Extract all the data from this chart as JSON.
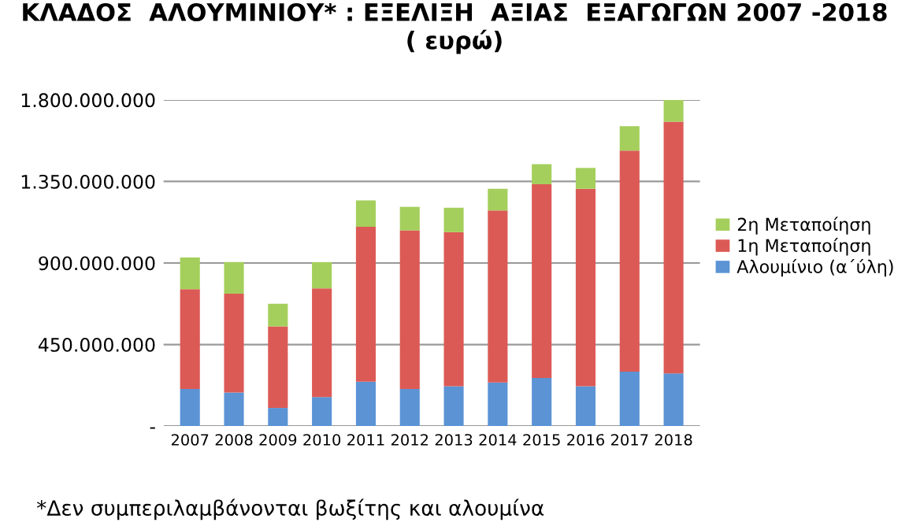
{
  "chart_data": {
    "type": "bar",
    "stacked": true,
    "title": "ΚΛΑΔΟΣ  ΑΛΟΥΜΙΝΙΟΥ* : ΕΞΕΛΙΞΗ  ΑΞΙΑΣ  ΕΞΑΓΩΓΩΝ 2007 -2018\n( ευρώ)",
    "categories": [
      "2007",
      "2008",
      "2009",
      "2010",
      "2011",
      "2012",
      "2013",
      "2014",
      "2015",
      "2016",
      "2017",
      "2018"
    ],
    "series": [
      {
        "name": "Αλουμίνιο (α΄ύλη)",
        "color": "#5b93d5",
        "values": [
          205000000,
          185000000,
          100000000,
          160000000,
          245000000,
          205000000,
          220000000,
          240000000,
          265000000,
          220000000,
          300000000,
          290000000
        ]
      },
      {
        "name": "1η Μεταποίηση",
        "color": "#dc5a55",
        "values": [
          550000000,
          545000000,
          450000000,
          600000000,
          855000000,
          875000000,
          850000000,
          950000000,
          1070000000,
          1090000000,
          1220000000,
          1390000000
        ]
      },
      {
        "name": "2η Μεταποίηση",
        "color": "#a5cf5c",
        "values": [
          175000000,
          175000000,
          125000000,
          145000000,
          145000000,
          130000000,
          135000000,
          120000000,
          110000000,
          115000000,
          135000000,
          120000000
        ]
      }
    ],
    "ylim": [
      0,
      1800000000
    ],
    "yticks": [
      {
        "value": 0,
        "label": "-"
      },
      {
        "value": 450000000,
        "label": "450.000.000"
      },
      {
        "value": 900000000,
        "label": "900.000.000"
      },
      {
        "value": 1350000000,
        "label": "1.350.000.000"
      },
      {
        "value": 1800000000,
        "label": "1.800.000.000"
      }
    ],
    "grid": "y",
    "legend": "right",
    "annotations": [
      "*Δεν συμπεριλαμβάνονται βωξίτης και αλουμίνα"
    ]
  }
}
